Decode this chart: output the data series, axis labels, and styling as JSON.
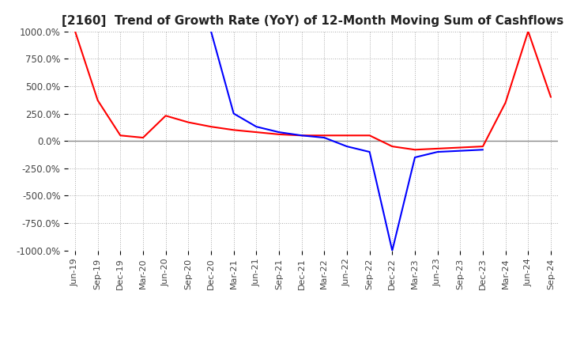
{
  "title": "[2160]  Trend of Growth Rate (YoY) of 12-Month Moving Sum of Cashflows",
  "title_fontsize": 11,
  "ylim": [
    -1000,
    1000
  ],
  "yticks": [
    -1000,
    -750,
    -500,
    -250,
    0,
    250,
    500,
    750,
    1000
  ],
  "yticklabels": [
    "-1000.0%",
    "-750.0%",
    "-500.0%",
    "-250.0%",
    "0.0%",
    "250.0%",
    "500.0%",
    "750.0%",
    "1000.0%"
  ],
  "background_color": "#ffffff",
  "grid_color": "#aaaaaa",
  "operating_color": "#ff0000",
  "free_color": "#0000ff",
  "x_labels": [
    "Jun-19",
    "Sep-19",
    "Dec-19",
    "Mar-20",
    "Jun-20",
    "Sep-20",
    "Dec-20",
    "Mar-21",
    "Jun-21",
    "Sep-21",
    "Dec-21",
    "Mar-22",
    "Jun-22",
    "Sep-22",
    "Dec-22",
    "Mar-23",
    "Jun-23",
    "Sep-23",
    "Dec-23",
    "Mar-24",
    "Jun-24",
    "Sep-24"
  ],
  "operating_cashflow": [
    1000,
    370,
    50,
    30,
    230,
    170,
    130,
    100,
    80,
    60,
    50,
    50,
    50,
    50,
    -50,
    -80,
    -70,
    -60,
    -50,
    350,
    1000,
    400
  ],
  "free_cashflow": [
    null,
    null,
    null,
    null,
    null,
    null,
    1000,
    250,
    130,
    80,
    50,
    30,
    -50,
    -100,
    -1000,
    -150,
    -100,
    -90,
    -80,
    null,
    null,
    null
  ]
}
